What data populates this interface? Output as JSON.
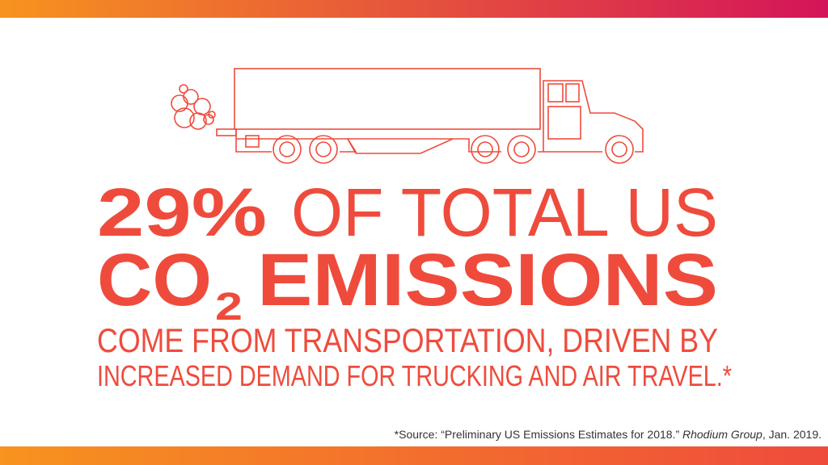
{
  "headline": {
    "line1": {
      "percent": "29%",
      "rest": "OF TOTAL US"
    },
    "line2": {
      "co": "CO",
      "subscript": "2",
      "rest": "EMISSIONS"
    }
  },
  "body": [
    "COME FROM TRANSPORTATION, DRIVEN BY",
    "INCREASED DEMAND FOR TRUCKING AND AIR TRAVEL.*"
  ],
  "source": {
    "prefix": "*Source: “Preliminary US Emissions Estimates for 2018.”",
    "publisher": "Rhodium Group",
    "suffix": ", Jan. 2019."
  }
}
